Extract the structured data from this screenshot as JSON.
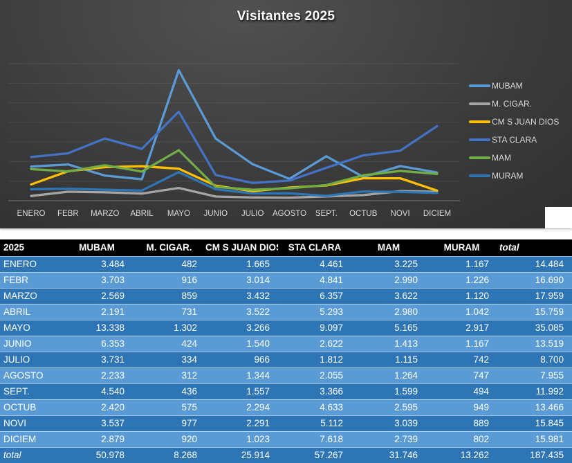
{
  "chart_data": {
    "type": "line",
    "title": "Visitantes 2025",
    "x": [
      "ENERO",
      "FEBR",
      "MARZO",
      "ABRIL",
      "MAYO",
      "JUNIO",
      "JULIO",
      "AGOSTO",
      "SEPT.",
      "OCTUB",
      "NOVI",
      "DICIEM"
    ],
    "ylim": [
      0,
      14000
    ],
    "gridline_step": 2000,
    "grid": true,
    "legend_position": "right",
    "series": [
      {
        "name": "MUBAM",
        "color": "#5B9BD5",
        "values": [
          3484,
          3703,
          2569,
          2191,
          13338,
          6353,
          3731,
          2233,
          4540,
          2420,
          3537,
          2879
        ]
      },
      {
        "name": "M. CIGAR.",
        "color": "#A5A5A5",
        "values": [
          482,
          916,
          859,
          731,
          1302,
          424,
          334,
          312,
          436,
          575,
          977,
          920
        ]
      },
      {
        "name": "CM S JUAN DIOS",
        "color": "#FFC000",
        "values": [
          1665,
          3014,
          3432,
          3522,
          3266,
          1540,
          966,
          1344,
          1557,
          2294,
          2291,
          1023
        ]
      },
      {
        "name": "STA CLARA",
        "color": "#4472C4",
        "values": [
          4461,
          4841,
          6357,
          5293,
          9097,
          2622,
          1812,
          2055,
          3366,
          4633,
          5112,
          7618
        ]
      },
      {
        "name": "MAM",
        "color": "#70AD47",
        "values": [
          3225,
          2990,
          3622,
          2980,
          5165,
          1413,
          1115,
          1264,
          1599,
          2595,
          3039,
          2739
        ]
      },
      {
        "name": "MURAM",
        "color": "#2E75B6",
        "values": [
          1167,
          1226,
          1120,
          1042,
          2917,
          1167,
          742,
          747,
          494,
          949,
          889,
          802
        ]
      }
    ]
  },
  "table": {
    "header": [
      "2025",
      "MUBAM",
      "M. CIGAR.",
      "CM S JUAN DIOS",
      "STA CLARA",
      "MAM",
      "MURAM",
      "total"
    ],
    "rows": [
      {
        "label": "ENERO",
        "values": [
          "3.484",
          "482",
          "1.665",
          "4.461",
          "3.225",
          "1.167",
          "14.484"
        ]
      },
      {
        "label": "FEBR",
        "values": [
          "3.703",
          "916",
          "3.014",
          "4.841",
          "2.990",
          "1.226",
          "16.690"
        ]
      },
      {
        "label": "MARZO",
        "values": [
          "2.569",
          "859",
          "3.432",
          "6.357",
          "3.622",
          "1.120",
          "17.959"
        ]
      },
      {
        "label": "ABRIL",
        "values": [
          "2.191",
          "731",
          "3.522",
          "5.293",
          "2.980",
          "1.042",
          "15.759"
        ]
      },
      {
        "label": "MAYO",
        "values": [
          "13.338",
          "1.302",
          "3.266",
          "9.097",
          "5.165",
          "2.917",
          "35.085"
        ]
      },
      {
        "label": "JUNIO",
        "values": [
          "6.353",
          "424",
          "1.540",
          "2.622",
          "1.413",
          "1.167",
          "13.519"
        ]
      },
      {
        "label": "JULIO",
        "values": [
          "3.731",
          "334",
          "966",
          "1.812",
          "1.115",
          "742",
          "8.700"
        ]
      },
      {
        "label": "AGOSTO",
        "values": [
          "2.233",
          "312",
          "1.344",
          "2.055",
          "1.264",
          "747",
          "7.955"
        ]
      },
      {
        "label": "SEPT.",
        "values": [
          "4.540",
          "436",
          "1.557",
          "3.366",
          "1.599",
          "494",
          "11.992"
        ]
      },
      {
        "label": "OCTUB",
        "values": [
          "2.420",
          "575",
          "2.294",
          "4.633",
          "2.595",
          "949",
          "13.466"
        ]
      },
      {
        "label": "NOVI",
        "values": [
          "3.537",
          "977",
          "2.291",
          "5.112",
          "3.039",
          "889",
          "15.845"
        ]
      },
      {
        "label": "DICIEM",
        "values": [
          "2.879",
          "920",
          "1.023",
          "7.618",
          "2.739",
          "802",
          "15.981"
        ]
      }
    ],
    "total_row": {
      "label": "total",
      "values": [
        "50.978",
        "8.268",
        "25.914",
        "57.267",
        "31.746",
        "13.262",
        "187.435"
      ]
    }
  },
  "colors": {
    "row_dark": "#2E75B6",
    "row_light": "#5B9BD5",
    "header_bg": "#000000",
    "chart_text": "#D9D9D9"
  }
}
